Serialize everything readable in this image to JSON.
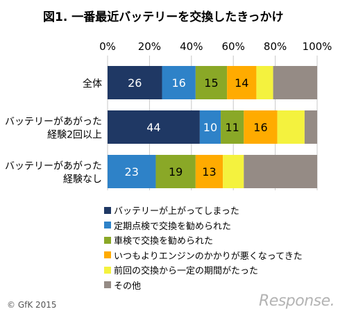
{
  "title": "図1. 一番最近バッテリーを交換したきっかけ",
  "copyright": "© GfK 2015",
  "brand": "Response.",
  "colors": {
    "series": [
      "#1f3864",
      "#2e82c8",
      "#8aa827",
      "#ffab00",
      "#f4f23e",
      "#958b85"
    ],
    "grid": "#c8c8c8",
    "label_light": "#ffffff",
    "label_dark": "#000000"
  },
  "chart_data": {
    "type": "bar",
    "orientation": "horizontal",
    "stacked": true,
    "xlim": [
      0,
      100
    ],
    "xticks": [
      "0%",
      "20%",
      "40%",
      "60%",
      "80%",
      "100%"
    ],
    "categories": [
      "全体",
      "バッテリーがあがった経験2回以上",
      "バッテリーがあがった経験なし"
    ],
    "category_lines": [
      [
        "全体"
      ],
      [
        "バッテリーがあがった",
        "経験2回以上"
      ],
      [
        "バッテリーがあがった",
        "経験なし"
      ]
    ],
    "series": [
      {
        "name": "バッテリーが上がってしまった",
        "values": [
          26,
          44,
          0
        ]
      },
      {
        "name": "定期点検で交換を勧められた",
        "values": [
          16,
          10,
          23
        ]
      },
      {
        "name": "車検で交換を勧められた",
        "values": [
          15,
          11,
          19
        ]
      },
      {
        "name": "いつもよりエンジンのかかりが悪くなってきた",
        "values": [
          14,
          16,
          13
        ]
      },
      {
        "name": "前回の交換から一定の期間がたった",
        "values": [
          8,
          13,
          10
        ]
      },
      {
        "name": "その他",
        "values": [
          21,
          6,
          35
        ]
      }
    ],
    "data_labels": [
      [
        "26",
        "16",
        "15",
        "14",
        "",
        ""
      ],
      [
        "44",
        "10",
        "11",
        "16",
        "",
        ""
      ],
      [
        "",
        "23",
        "19",
        "13",
        "",
        ""
      ]
    ],
    "grid": true,
    "legend_position": "bottom"
  }
}
